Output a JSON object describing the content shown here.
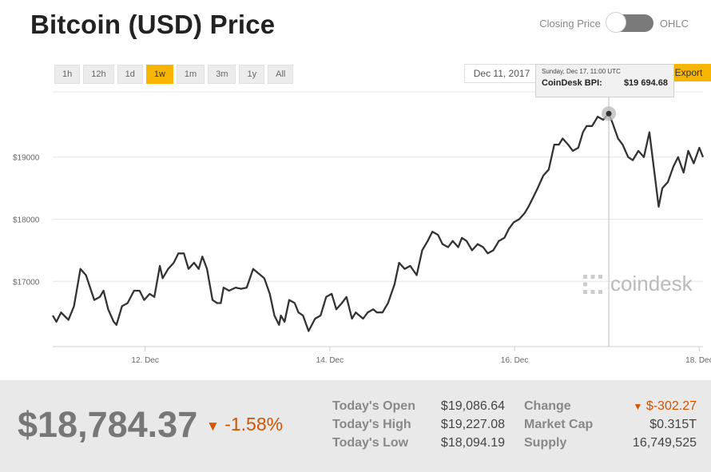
{
  "header": {
    "title": "Bitcoin (USD) Price",
    "toggle_left_label": "Closing Price",
    "toggle_right_label": "OHLC"
  },
  "controls": {
    "ranges": [
      "1h",
      "12h",
      "1d",
      "1w",
      "1m",
      "3m",
      "1y",
      "All"
    ],
    "active_range": "1w",
    "date_value": "Dec 11, 2017",
    "export_label": "Export"
  },
  "tooltip": {
    "datetime": "Sunday, Dec 17, 11:00 UTC",
    "label": "CoinDesk BPI:",
    "value": "$19 694.68"
  },
  "watermark": {
    "text": "coindesk"
  },
  "chart_data": {
    "type": "line",
    "x_ticks": [
      "12. Dec",
      "14. Dec",
      "16. Dec",
      "18. Dec"
    ],
    "y_ticks": [
      "$17000",
      "$18000",
      "$19000"
    ],
    "ylim": [
      15950,
      20050
    ],
    "grid": true,
    "line_color": "#333333",
    "series": [
      {
        "x_unit": "days since Dec 11 00:00 UTC",
        "points": [
          [
            0.0,
            16450
          ],
          [
            0.04,
            16350
          ],
          [
            0.09,
            16500
          ],
          [
            0.17,
            16380
          ],
          [
            0.23,
            16600
          ],
          [
            0.3,
            17200
          ],
          [
            0.36,
            17100
          ],
          [
            0.45,
            16700
          ],
          [
            0.51,
            16750
          ],
          [
            0.55,
            16850
          ],
          [
            0.6,
            16550
          ],
          [
            0.66,
            16350
          ],
          [
            0.69,
            16300
          ],
          [
            0.75,
            16600
          ],
          [
            0.81,
            16650
          ],
          [
            0.88,
            16850
          ],
          [
            0.94,
            16850
          ],
          [
            0.99,
            16700
          ],
          [
            1.05,
            16800
          ],
          [
            1.1,
            16750
          ],
          [
            1.16,
            17250
          ],
          [
            1.19,
            17050
          ],
          [
            1.25,
            17200
          ],
          [
            1.31,
            17300
          ],
          [
            1.36,
            17450
          ],
          [
            1.42,
            17450
          ],
          [
            1.47,
            17200
          ],
          [
            1.53,
            17300
          ],
          [
            1.58,
            17200
          ],
          [
            1.62,
            17400
          ],
          [
            1.67,
            17200
          ],
          [
            1.73,
            16700
          ],
          [
            1.78,
            16650
          ],
          [
            1.82,
            16650
          ],
          [
            1.85,
            16900
          ],
          [
            1.91,
            16850
          ],
          [
            1.98,
            16900
          ],
          [
            2.04,
            16880
          ],
          [
            2.1,
            16900
          ],
          [
            2.17,
            17200
          ],
          [
            2.21,
            17150
          ],
          [
            2.29,
            17050
          ],
          [
            2.35,
            16800
          ],
          [
            2.4,
            16450
          ],
          [
            2.45,
            16300
          ],
          [
            2.47,
            16450
          ],
          [
            2.51,
            16350
          ],
          [
            2.56,
            16700
          ],
          [
            2.62,
            16650
          ],
          [
            2.66,
            16500
          ],
          [
            2.71,
            16450
          ],
          [
            2.77,
            16200
          ],
          [
            2.84,
            16400
          ],
          [
            2.9,
            16450
          ],
          [
            2.96,
            16750
          ],
          [
            3.02,
            16800
          ],
          [
            3.07,
            16550
          ],
          [
            3.13,
            16650
          ],
          [
            3.18,
            16750
          ],
          [
            3.24,
            16400
          ],
          [
            3.28,
            16500
          ],
          [
            3.36,
            16400
          ],
          [
            3.41,
            16500
          ],
          [
            3.47,
            16550
          ],
          [
            3.51,
            16500
          ],
          [
            3.57,
            16500
          ],
          [
            3.63,
            16650
          ],
          [
            3.7,
            16950
          ],
          [
            3.75,
            17300
          ],
          [
            3.81,
            17200
          ],
          [
            3.87,
            17250
          ],
          [
            3.94,
            17100
          ],
          [
            4.0,
            17500
          ],
          [
            4.06,
            17650
          ],
          [
            4.11,
            17800
          ],
          [
            4.17,
            17750
          ],
          [
            4.22,
            17600
          ],
          [
            4.28,
            17550
          ],
          [
            4.33,
            17650
          ],
          [
            4.39,
            17550
          ],
          [
            4.43,
            17700
          ],
          [
            4.48,
            17650
          ],
          [
            4.54,
            17500
          ],
          [
            4.6,
            17600
          ],
          [
            4.66,
            17550
          ],
          [
            4.71,
            17450
          ],
          [
            4.77,
            17500
          ],
          [
            4.83,
            17650
          ],
          [
            4.89,
            17700
          ],
          [
            4.94,
            17850
          ],
          [
            4.99,
            17950
          ],
          [
            5.05,
            18000
          ],
          [
            5.11,
            18100
          ],
          [
            5.15,
            18200
          ],
          [
            5.2,
            18350
          ],
          [
            5.25,
            18500
          ],
          [
            5.31,
            18700
          ],
          [
            5.37,
            18800
          ],
          [
            5.43,
            19200
          ],
          [
            5.48,
            19200
          ],
          [
            5.52,
            19300
          ],
          [
            5.58,
            19200
          ],
          [
            5.63,
            19100
          ],
          [
            5.69,
            19150
          ],
          [
            5.74,
            19400
          ],
          [
            5.78,
            19500
          ],
          [
            5.84,
            19500
          ],
          [
            5.9,
            19650
          ],
          [
            5.96,
            19600
          ],
          [
            6.02,
            19700
          ],
          [
            6.06,
            19550
          ],
          [
            6.12,
            19300
          ],
          [
            6.17,
            19200
          ],
          [
            6.23,
            19000
          ],
          [
            6.28,
            18950
          ],
          [
            6.34,
            19100
          ],
          [
            6.4,
            19000
          ],
          [
            6.46,
            19400
          ],
          [
            6.51,
            18800
          ],
          [
            6.56,
            18200
          ],
          [
            6.6,
            18500
          ],
          [
            6.66,
            18600
          ],
          [
            6.72,
            18850
          ],
          [
            6.77,
            19000
          ],
          [
            6.83,
            18750
          ],
          [
            6.88,
            19100
          ],
          [
            6.94,
            18900
          ],
          [
            7.0,
            19150
          ],
          [
            7.04,
            19000
          ]
        ]
      }
    ]
  },
  "summary": {
    "price": "$18,784.37",
    "change_pct": "-1.58%",
    "today_open_label": "Today's Open",
    "today_open": "$19,086.64",
    "today_high_label": "Today's High",
    "today_high": "$19,227.08",
    "today_low_label": "Today's Low",
    "today_low": "$18,094.19",
    "change_label": "Change",
    "change_value": "$-302.27",
    "market_cap_label": "Market Cap",
    "market_cap": "$0.315T",
    "supply_label": "Supply",
    "supply": "16,749,525"
  }
}
